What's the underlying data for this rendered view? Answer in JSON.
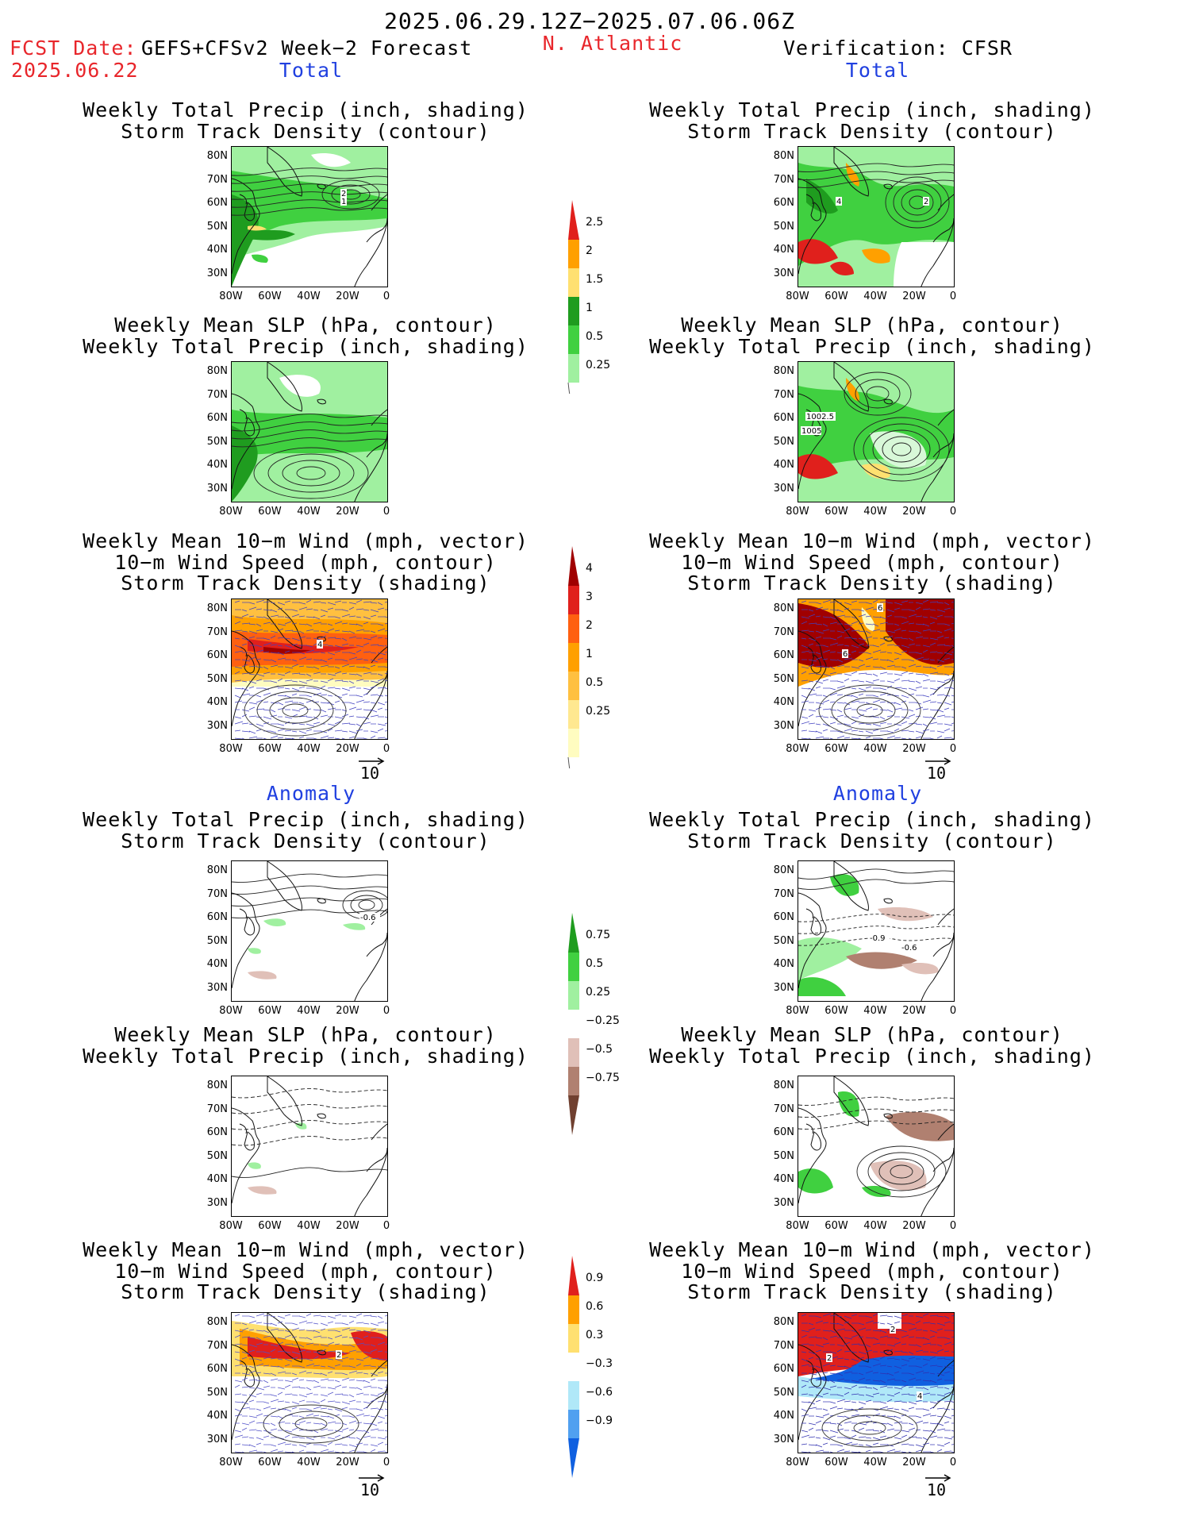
{
  "header": {
    "date_range": "2025.06.29.12Z−2025.07.06.06Z",
    "fcst_label": "FCST Date:",
    "fcst_date": "2025.06.22",
    "product": "GEFS+CFSv2 Week−2 Forecast",
    "region": "N. Atlantic",
    "verification": "Verification: CFSR"
  },
  "sections": {
    "total": "Total",
    "anomaly": "Anomaly"
  },
  "titles": {
    "precip_storm": [
      "Weekly Total Precip (inch, shading)",
      "Storm Track Density (contour)"
    ],
    "slp_precip": [
      "Weekly Mean SLP (hPa, contour)",
      "Weekly Total Precip (inch, shading)"
    ],
    "wind_storm": [
      "Weekly Mean 10−m Wind (mph, vector)",
      "10−m Wind Speed (mph, contour)",
      "Storm Track Density (shading)"
    ]
  },
  "axes": {
    "lat_labels": [
      "80N",
      "70N",
      "60N",
      "50N",
      "40N",
      "30N"
    ],
    "lon_labels": [
      "80W",
      "60W",
      "40W",
      "20W",
      "0"
    ]
  },
  "ref_vector": "10",
  "colorbars": {
    "precip_total": {
      "labels": [
        "2.5",
        "2",
        "1.5",
        "1",
        "0.5",
        "0.25"
      ],
      "colors": [
        "#e0201c",
        "#ffa000",
        "#ffe070",
        "#1f9c1f",
        "#40d040",
        "#a0f0a0"
      ]
    },
    "storm_total": {
      "labels": [
        "4",
        "3",
        "2",
        "1",
        "0.5",
        "0.25"
      ],
      "colors": [
        "#a00000",
        "#e0201c",
        "#ff6010",
        "#ffa000",
        "#ffc040",
        "#ffe890",
        "#fffcc0"
      ]
    },
    "precip_anom": {
      "labels": [
        "0.75",
        "0.5",
        "0.25",
        "−0.25",
        "−0.5",
        "−0.75"
      ],
      "colors": [
        "#1f9c1f",
        "#40d040",
        "#a0f0a0",
        "#ffffff",
        "#e0c0b8",
        "#b08070",
        "#704030"
      ]
    },
    "storm_anom": {
      "labels": [
        "0.9",
        "0.6",
        "0.3",
        "−0.3",
        "−0.6",
        "−0.9"
      ],
      "colors": [
        "#e0201c",
        "#ffa000",
        "#ffe070",
        "#ffffff",
        "#b0e8f8",
        "#50a0f0",
        "#1060e0"
      ]
    }
  },
  "panel_labels": {
    "fc_total_storm_1": "2",
    "fc_total_storm_2": "1",
    "vf_total_storm_1": "4",
    "vf_total_storm_2": "2",
    "vf_slp_1": "1002.5",
    "vf_slp_2": "1005",
    "fc_wind_1": "4",
    "vf_wind_1": "6",
    "vf_wind_2": "6",
    "fc_anom_storm": "-0.6",
    "vf_anom_storm_1": "-0.9",
    "vf_anom_storm_2": "-0.6",
    "fc_anom_wind": "2",
    "vf_anom_wind_1": "2",
    "vf_anom_wind_2": "2",
    "vf_anom_wind_3": "4"
  }
}
